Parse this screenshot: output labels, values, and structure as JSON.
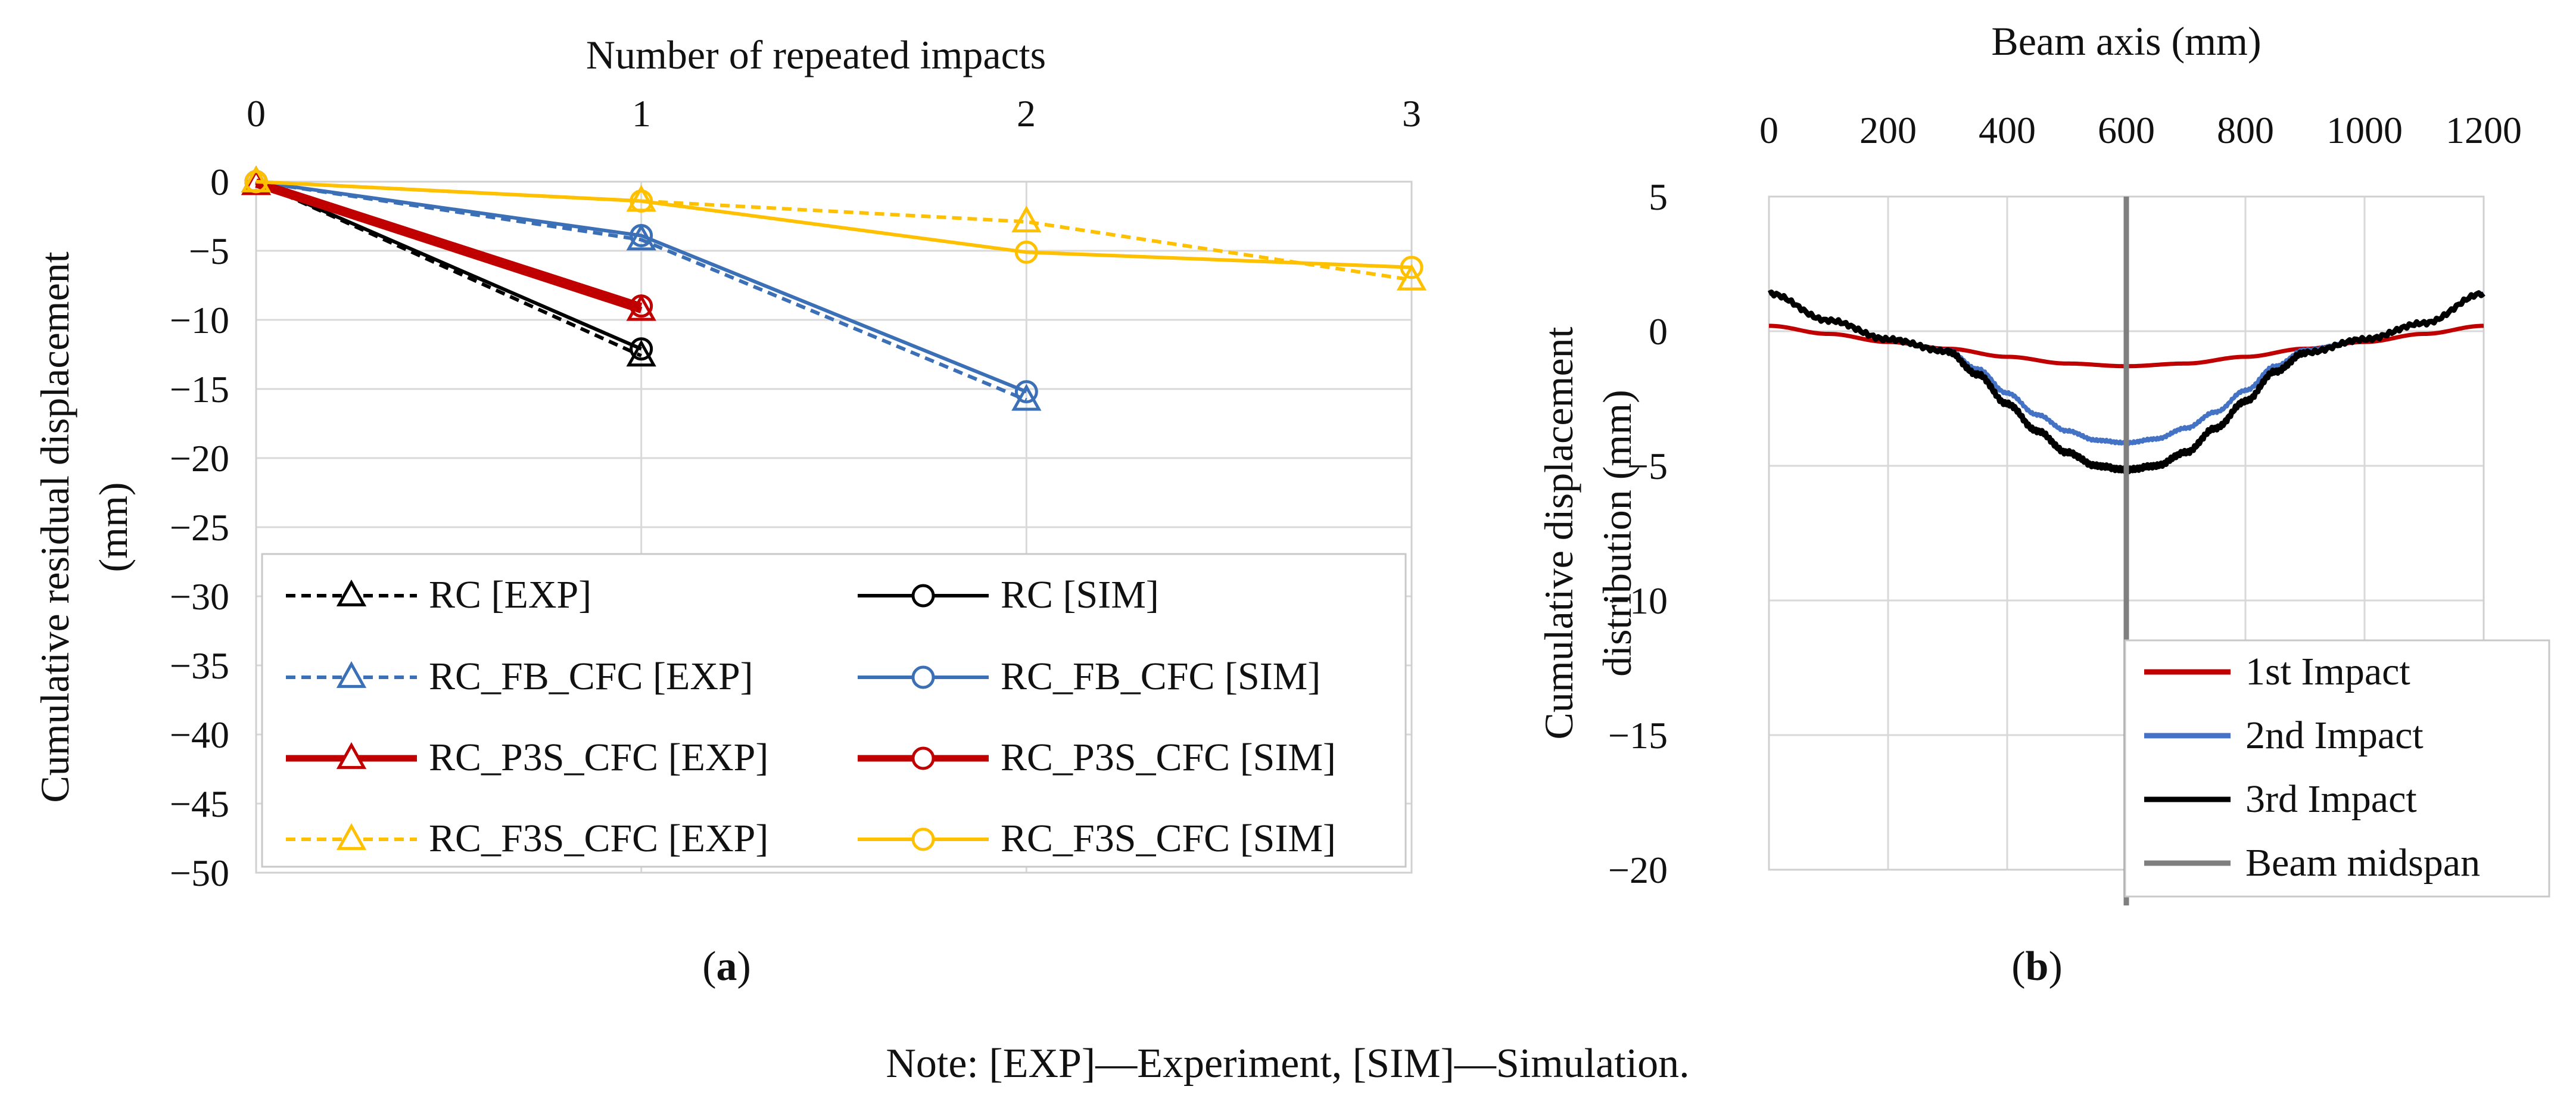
{
  "chart_data": [
    {
      "id": "a",
      "type": "line",
      "panel_label": "a",
      "panel_label_full": "(a)",
      "title": "",
      "xlabel": "Number of repeated impacts",
      "ylabel": "Cumulative residual displacement (mm)",
      "ylabel_lines": [
        "Cumulative residual displacement",
        "(mm)"
      ],
      "xlim": [
        0,
        3
      ],
      "ylim": [
        -50,
        0
      ],
      "xticks": [
        "0",
        "1",
        "2",
        "3"
      ],
      "yticks": [
        "0",
        "−5",
        "−10",
        "−15",
        "−20",
        "−25",
        "−30",
        "−35",
        "−40",
        "−45",
        "−50"
      ],
      "x_axis_position": "top",
      "grid": true,
      "legend_placement": "bottom",
      "series": [
        {
          "name": "RC [EXP]",
          "color": "#000000",
          "dash": "dashed",
          "marker": "triangle",
          "width": "thin",
          "x": [
            0,
            1
          ],
          "y": [
            0,
            -12.6
          ]
        },
        {
          "name": "RC [SIM]",
          "color": "#000000",
          "dash": "solid",
          "marker": "circle",
          "width": "thin",
          "x": [
            0,
            1
          ],
          "y": [
            0,
            -12.1
          ]
        },
        {
          "name": "RC_FB_CFC [EXP]",
          "color": "#3b6fb6",
          "dash": "dashed",
          "marker": "triangle",
          "width": "thin",
          "x": [
            0,
            1,
            2
          ],
          "y": [
            0,
            -4.2,
            -15.8
          ]
        },
        {
          "name": "RC_FB_CFC [SIM]",
          "color": "#3b6fb6",
          "dash": "solid",
          "marker": "circle",
          "width": "thin",
          "x": [
            0,
            1,
            2
          ],
          "y": [
            0,
            -3.9,
            -15.2
          ]
        },
        {
          "name": "RC_P3S_CFC [EXP]",
          "color": "#c00000",
          "dash": "solid",
          "marker": "triangle",
          "width": "thick",
          "x": [
            0,
            1
          ],
          "y": [
            -0.2,
            -9.3
          ]
        },
        {
          "name": "RC_P3S_CFC [SIM]",
          "color": "#c00000",
          "dash": "solid",
          "marker": "circle",
          "width": "thick",
          "x": [
            0,
            1
          ],
          "y": [
            0,
            -9.0
          ]
        },
        {
          "name": "RC_F3S_CFC [EXP]",
          "color": "#ffc000",
          "dash": "dashed",
          "marker": "triangle",
          "width": "thin",
          "x": [
            0,
            1,
            2,
            3
          ],
          "y": [
            0,
            -1.4,
            -2.9,
            -7.1
          ]
        },
        {
          "name": "RC_F3S_CFC [SIM]",
          "color": "#ffc000",
          "dash": "solid",
          "marker": "circle",
          "width": "thin",
          "x": [
            0,
            1,
            2,
            3
          ],
          "y": [
            0,
            -1.4,
            -5.1,
            -6.2
          ]
        }
      ]
    },
    {
      "id": "b",
      "type": "line",
      "panel_label": "b",
      "panel_label_full": "(b)",
      "title": "",
      "xlabel": "Beam axis (mm)",
      "ylabel": "Cumulative displacement distribution (mm)",
      "ylabel_lines": [
        "Cumulative displacement",
        "distribution (mm)"
      ],
      "xlim": [
        0,
        1200
      ],
      "ylim": [
        -20,
        5
      ],
      "xticks": [
        "0",
        "200",
        "400",
        "600",
        "800",
        "1000",
        "1200"
      ],
      "yticks": [
        "5",
        "0",
        "−5",
        "−10",
        "−15",
        "−20"
      ],
      "x_axis_position": "top",
      "grid": true,
      "legend_placement": "bottom-right",
      "series": [
        {
          "name": "1st Impact",
          "color": "#c00000",
          "x": [
            0,
            100,
            200,
            300,
            400,
            500,
            600,
            700,
            800,
            900,
            1000,
            1100,
            1200
          ],
          "y": [
            0.2,
            -0.1,
            -0.4,
            -0.65,
            -0.95,
            -1.2,
            -1.3,
            -1.2,
            -0.95,
            -0.65,
            -0.4,
            -0.1,
            0.2
          ]
        },
        {
          "name": "2nd Impact",
          "color": "#4472c4",
          "x": [
            0,
            100,
            200,
            300,
            350,
            400,
            450,
            500,
            550,
            600,
            650,
            700,
            750,
            800,
            850,
            900,
            1000,
            1100,
            1200
          ],
          "y": [
            1.4,
            0.4,
            -0.3,
            -0.7,
            -1.4,
            -2.3,
            -3.1,
            -3.7,
            -4.05,
            -4.15,
            -4.0,
            -3.6,
            -3.0,
            -2.2,
            -1.3,
            -0.7,
            -0.3,
            0.3,
            1.4
          ]
        },
        {
          "name": "3rd Impact",
          "color": "#000000",
          "x": [
            0,
            100,
            200,
            300,
            350,
            400,
            450,
            500,
            550,
            600,
            650,
            700,
            750,
            800,
            850,
            900,
            1000,
            1100,
            1200
          ],
          "y": [
            1.4,
            0.4,
            -0.3,
            -0.75,
            -1.6,
            -2.7,
            -3.7,
            -4.5,
            -5.0,
            -5.15,
            -5.0,
            -4.5,
            -3.6,
            -2.6,
            -1.5,
            -0.8,
            -0.3,
            0.3,
            1.4
          ]
        },
        {
          "name": "Beam midspan",
          "color": "#7f7f7f",
          "x": [
            600,
            600
          ],
          "y": [
            5,
            -20
          ]
        }
      ]
    }
  ],
  "note": "Note: [EXP]—Experiment, [SIM]—Simulation."
}
